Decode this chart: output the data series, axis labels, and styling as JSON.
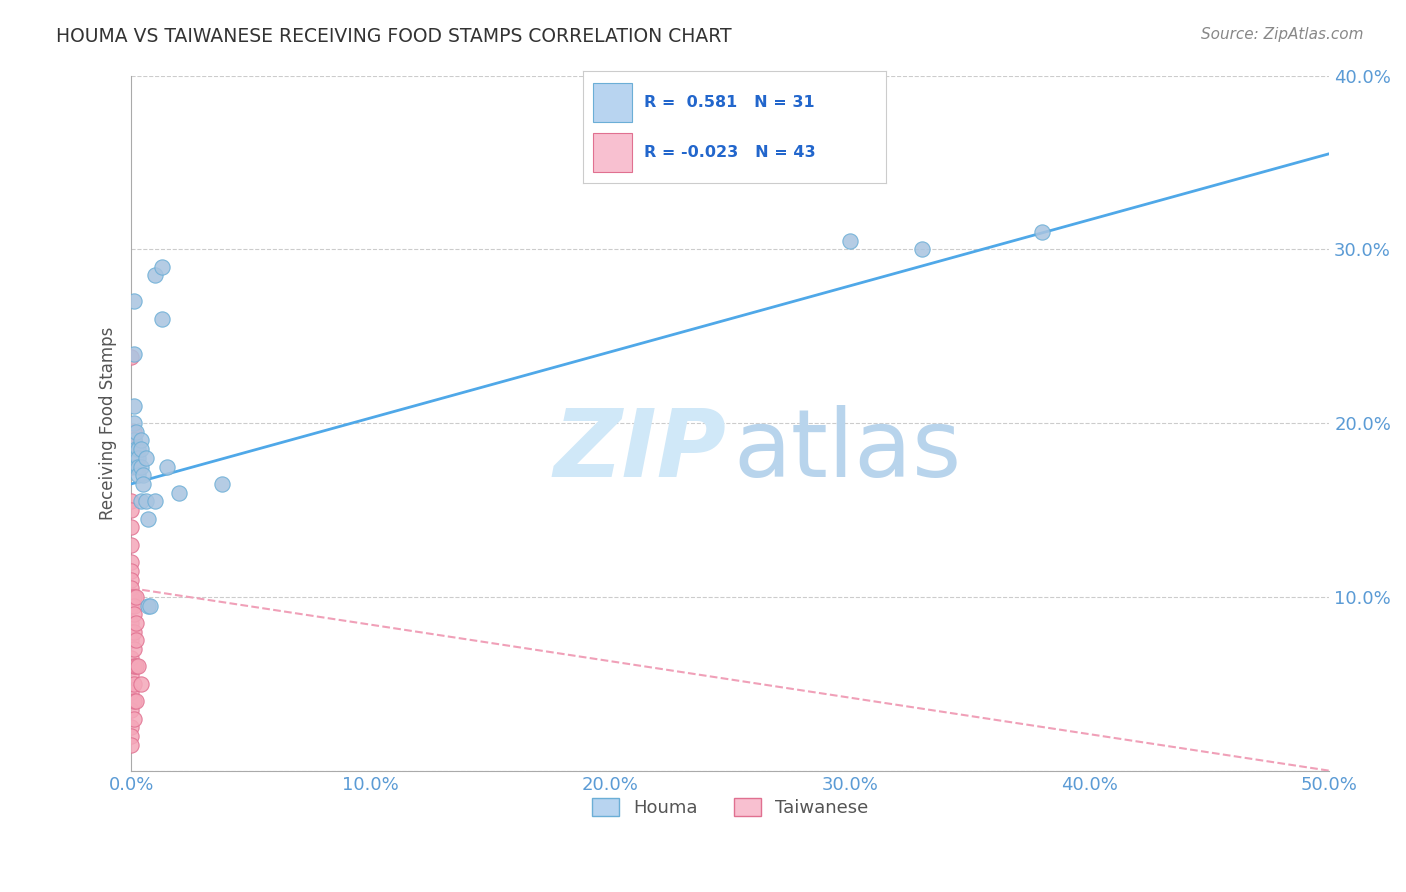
{
  "title": "HOUMA VS TAIWANESE RECEIVING FOOD STAMPS CORRELATION CHART",
  "source": "Source: ZipAtlas.com",
  "ylabel": "Receiving Food Stamps",
  "xlim": [
    0.0,
    0.5
  ],
  "ylim": [
    0.0,
    0.4
  ],
  "xticks": [
    0.0,
    0.1,
    0.2,
    0.3,
    0.4,
    0.5
  ],
  "yticks": [
    0.0,
    0.1,
    0.2,
    0.3,
    0.4
  ],
  "xtick_labels": [
    "0.0%",
    "10.0%",
    "20.0%",
    "30.0%",
    "40.0%",
    "50.0%"
  ],
  "ytick_labels": [
    "",
    "10.0%",
    "20.0%",
    "30.0%",
    "40.0%"
  ],
  "houma_color": "#a8c4e0",
  "taiwanese_color": "#f4a7b9",
  "houma_edge_color": "#6baed6",
  "taiwanese_edge_color": "#e07090",
  "line_houma_color": "#4fa8e8",
  "line_taiwanese_color": "#f0a0b8",
  "legend_houma_color": "#b8d4f0",
  "legend_taiwanese_color": "#f8c0d0",
  "houma_points": [
    [
      0.001,
      0.27
    ],
    [
      0.001,
      0.24
    ],
    [
      0.001,
      0.21
    ],
    [
      0.001,
      0.2
    ],
    [
      0.001,
      0.19
    ],
    [
      0.002,
      0.195
    ],
    [
      0.002,
      0.185
    ],
    [
      0.002,
      0.18
    ],
    [
      0.002,
      0.175
    ],
    [
      0.003,
      0.185
    ],
    [
      0.003,
      0.18
    ],
    [
      0.003,
      0.175
    ],
    [
      0.003,
      0.17
    ],
    [
      0.004,
      0.19
    ],
    [
      0.004,
      0.185
    ],
    [
      0.004,
      0.175
    ],
    [
      0.004,
      0.155
    ],
    [
      0.005,
      0.17
    ],
    [
      0.005,
      0.165
    ],
    [
      0.006,
      0.18
    ],
    [
      0.006,
      0.155
    ],
    [
      0.007,
      0.145
    ],
    [
      0.007,
      0.095
    ],
    [
      0.008,
      0.095
    ],
    [
      0.01,
      0.285
    ],
    [
      0.01,
      0.155
    ],
    [
      0.013,
      0.29
    ],
    [
      0.013,
      0.26
    ],
    [
      0.015,
      0.175
    ],
    [
      0.02,
      0.16
    ],
    [
      0.038,
      0.165
    ],
    [
      0.3,
      0.305
    ],
    [
      0.33,
      0.3
    ],
    [
      0.38,
      0.31
    ]
  ],
  "taiwanese_points": [
    [
      0.0,
      0.238
    ],
    [
      0.0,
      0.195
    ],
    [
      0.0,
      0.19
    ],
    [
      0.0,
      0.185
    ],
    [
      0.0,
      0.175
    ],
    [
      0.0,
      0.155
    ],
    [
      0.0,
      0.15
    ],
    [
      0.0,
      0.14
    ],
    [
      0.0,
      0.13
    ],
    [
      0.0,
      0.12
    ],
    [
      0.0,
      0.115
    ],
    [
      0.0,
      0.11
    ],
    [
      0.0,
      0.105
    ],
    [
      0.0,
      0.1
    ],
    [
      0.0,
      0.095
    ],
    [
      0.0,
      0.085
    ],
    [
      0.0,
      0.08
    ],
    [
      0.0,
      0.075
    ],
    [
      0.0,
      0.065
    ],
    [
      0.0,
      0.055
    ],
    [
      0.0,
      0.045
    ],
    [
      0.0,
      0.035
    ],
    [
      0.0,
      0.025
    ],
    [
      0.0,
      0.02
    ],
    [
      0.0,
      0.015
    ],
    [
      0.001,
      0.195
    ],
    [
      0.001,
      0.19
    ],
    [
      0.001,
      0.1
    ],
    [
      0.001,
      0.095
    ],
    [
      0.001,
      0.09
    ],
    [
      0.001,
      0.08
    ],
    [
      0.001,
      0.07
    ],
    [
      0.001,
      0.06
    ],
    [
      0.001,
      0.05
    ],
    [
      0.001,
      0.04
    ],
    [
      0.001,
      0.03
    ],
    [
      0.002,
      0.1
    ],
    [
      0.002,
      0.085
    ],
    [
      0.002,
      0.075
    ],
    [
      0.002,
      0.06
    ],
    [
      0.002,
      0.04
    ],
    [
      0.003,
      0.06
    ],
    [
      0.004,
      0.05
    ]
  ],
  "houma_line_x": [
    0.0,
    0.5
  ],
  "houma_line_y": [
    0.165,
    0.355
  ],
  "taiwanese_line_x": [
    0.0,
    0.5
  ],
  "taiwanese_line_y": [
    0.105,
    0.0
  ],
  "background_color": "#ffffff",
  "grid_color": "#cccccc",
  "title_color": "#333333",
  "tick_color": "#5b9bd5"
}
